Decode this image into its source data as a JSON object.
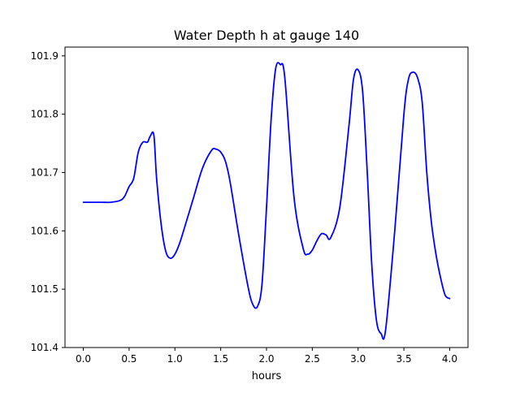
{
  "chart_data": {
    "type": "line",
    "title": "Water Depth h at gauge 140",
    "xlabel": "hours",
    "ylabel": "",
    "xlim": [
      -0.2,
      4.2
    ],
    "ylim": [
      101.4,
      101.915
    ],
    "xticks": [
      0.0,
      0.5,
      1.0,
      1.5,
      2.0,
      2.5,
      3.0,
      3.5,
      4.0
    ],
    "xtick_labels": [
      "0.0",
      "0.5",
      "1.0",
      "1.5",
      "2.0",
      "2.5",
      "3.0",
      "3.5",
      "4.0"
    ],
    "yticks": [
      101.4,
      101.5,
      101.6,
      101.7,
      101.8,
      101.9
    ],
    "ytick_labels": [
      "101.4",
      "101.5",
      "101.6",
      "101.7",
      "101.8",
      "101.9"
    ],
    "grid": false,
    "series": [
      {
        "color": "#0000ff",
        "x": [
          0.0,
          0.1,
          0.2,
          0.3,
          0.4,
          0.45,
          0.5,
          0.55,
          0.6,
          0.65,
          0.7,
          0.73,
          0.77,
          0.8,
          0.85,
          0.9,
          0.95,
          1.0,
          1.05,
          1.1,
          1.2,
          1.3,
          1.4,
          1.45,
          1.5,
          1.55,
          1.6,
          1.7,
          1.8,
          1.85,
          1.9,
          1.95,
          2.0,
          2.05,
          2.1,
          2.15,
          2.2,
          2.3,
          2.4,
          2.45,
          2.5,
          2.55,
          2.6,
          2.65,
          2.7,
          2.8,
          2.9,
          2.95,
          3.0,
          3.05,
          3.1,
          3.15,
          3.2,
          3.25,
          3.3,
          3.4,
          3.5,
          3.55,
          3.6,
          3.65,
          3.7,
          3.75,
          3.8,
          3.85,
          3.9,
          3.95,
          4.0
        ],
        "y": [
          101.649,
          101.649,
          101.649,
          101.649,
          101.652,
          101.659,
          101.676,
          101.69,
          101.735,
          101.752,
          101.752,
          101.762,
          101.764,
          101.69,
          101.611,
          101.565,
          101.553,
          101.56,
          101.578,
          101.603,
          101.655,
          101.707,
          101.738,
          101.74,
          101.735,
          101.72,
          101.686,
          101.59,
          101.503,
          101.474,
          101.47,
          101.507,
          101.64,
          101.79,
          101.878,
          101.885,
          101.862,
          101.658,
          101.57,
          101.56,
          101.567,
          101.583,
          101.595,
          101.593,
          101.588,
          101.64,
          101.78,
          101.86,
          101.876,
          101.838,
          101.7,
          101.54,
          101.447,
          101.424,
          101.43,
          101.6,
          101.8,
          101.86,
          101.872,
          101.862,
          101.82,
          101.7,
          101.615,
          101.56,
          101.52,
          101.49,
          101.484
        ]
      }
    ]
  }
}
